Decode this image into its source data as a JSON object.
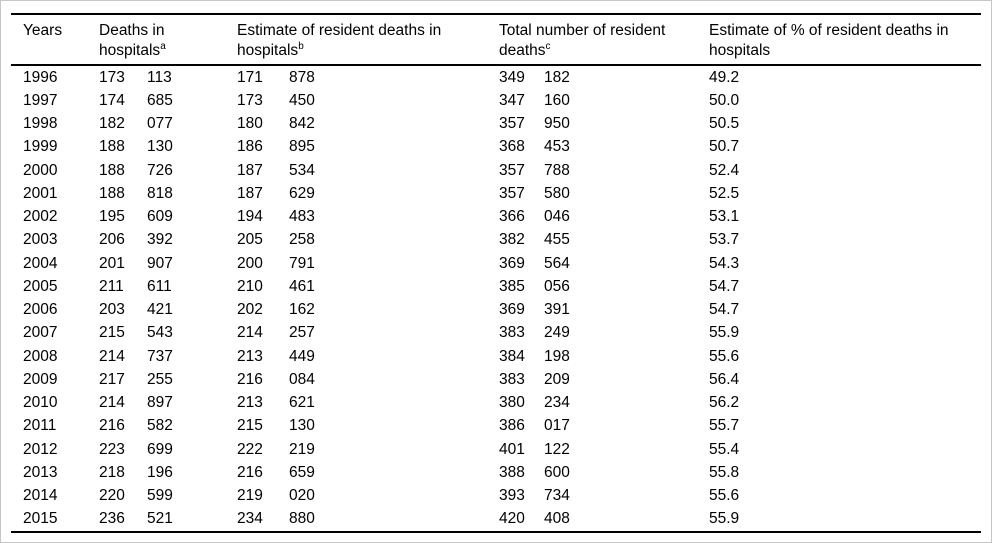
{
  "chart_data": {
    "type": "table",
    "columns": [
      "Years",
      "Deaths in hospitals",
      "Estimate of resident deaths in hospitals",
      "Total number of resident deaths",
      "Estimate of % of resident deaths in hospitals"
    ],
    "footnote_markers": [
      "a",
      "b",
      "c"
    ],
    "rows": [
      [
        1996,
        173113,
        171878,
        349182,
        49.2
      ],
      [
        1997,
        174685,
        173450,
        347160,
        50.0
      ],
      [
        1998,
        182077,
        180842,
        357950,
        50.5
      ],
      [
        1999,
        188130,
        186895,
        368453,
        50.7
      ],
      [
        2000,
        188726,
        187534,
        357788,
        52.4
      ],
      [
        2001,
        188818,
        187629,
        357580,
        52.5
      ],
      [
        2002,
        195609,
        194483,
        366046,
        53.1
      ],
      [
        2003,
        206392,
        205258,
        382455,
        53.7
      ],
      [
        2004,
        201907,
        200791,
        369564,
        54.3
      ],
      [
        2005,
        211611,
        210461,
        385056,
        54.7
      ],
      [
        2006,
        203421,
        202162,
        369391,
        54.7
      ],
      [
        2007,
        215543,
        214257,
        383249,
        55.9
      ],
      [
        2008,
        214737,
        213449,
        384198,
        55.6
      ],
      [
        2009,
        217255,
        216084,
        383209,
        56.4
      ],
      [
        2010,
        214897,
        213621,
        380234,
        56.2
      ],
      [
        2011,
        216582,
        215130,
        386017,
        55.7
      ],
      [
        2012,
        223699,
        222219,
        401122,
        55.4
      ],
      [
        2013,
        218196,
        216659,
        388600,
        55.8
      ],
      [
        2014,
        220599,
        219020,
        393734,
        55.6
      ],
      [
        2015,
        236521,
        234880,
        420408,
        55.9
      ]
    ]
  },
  "table": {
    "headers": {
      "years": "Years",
      "deaths_hospitals": {
        "text": "Deaths in hospitals",
        "sup": "a"
      },
      "estimate_resident": {
        "text": "Estimate of resident deaths in hospitals",
        "sup": "b"
      },
      "total_resident": {
        "text": "Total number of resident deaths",
        "sup": "c"
      },
      "pct_resident": {
        "text": "Estimate of % of resident deaths in hospitals"
      }
    },
    "rows": [
      {
        "year": "1996",
        "hosp": [
          "173",
          "113"
        ],
        "est": [
          "171",
          "878"
        ],
        "total": [
          "349",
          "182"
        ],
        "pct": "49.2"
      },
      {
        "year": "1997",
        "hosp": [
          "174",
          "685"
        ],
        "est": [
          "173",
          "450"
        ],
        "total": [
          "347",
          "160"
        ],
        "pct": "50.0"
      },
      {
        "year": "1998",
        "hosp": [
          "182",
          "077"
        ],
        "est": [
          "180",
          "842"
        ],
        "total": [
          "357",
          "950"
        ],
        "pct": "50.5"
      },
      {
        "year": "1999",
        "hosp": [
          "188",
          "130"
        ],
        "est": [
          "186",
          "895"
        ],
        "total": [
          "368",
          "453"
        ],
        "pct": "50.7"
      },
      {
        "year": "2000",
        "hosp": [
          "188",
          "726"
        ],
        "est": [
          "187",
          "534"
        ],
        "total": [
          "357",
          "788"
        ],
        "pct": "52.4"
      },
      {
        "year": "2001",
        "hosp": [
          "188",
          "818"
        ],
        "est": [
          "187",
          "629"
        ],
        "total": [
          "357",
          "580"
        ],
        "pct": "52.5"
      },
      {
        "year": "2002",
        "hosp": [
          "195",
          "609"
        ],
        "est": [
          "194",
          "483"
        ],
        "total": [
          "366",
          "046"
        ],
        "pct": "53.1"
      },
      {
        "year": "2003",
        "hosp": [
          "206",
          "392"
        ],
        "est": [
          "205",
          "258"
        ],
        "total": [
          "382",
          "455"
        ],
        "pct": "53.7"
      },
      {
        "year": "2004",
        "hosp": [
          "201",
          "907"
        ],
        "est": [
          "200",
          "791"
        ],
        "total": [
          "369",
          "564"
        ],
        "pct": "54.3"
      },
      {
        "year": "2005",
        "hosp": [
          "211",
          "611"
        ],
        "est": [
          "210",
          "461"
        ],
        "total": [
          "385",
          "056"
        ],
        "pct": "54.7"
      },
      {
        "year": "2006",
        "hosp": [
          "203",
          "421"
        ],
        "est": [
          "202",
          "162"
        ],
        "total": [
          "369",
          "391"
        ],
        "pct": "54.7"
      },
      {
        "year": "2007",
        "hosp": [
          "215",
          "543"
        ],
        "est": [
          "214",
          "257"
        ],
        "total": [
          "383",
          "249"
        ],
        "pct": "55.9"
      },
      {
        "year": "2008",
        "hosp": [
          "214",
          "737"
        ],
        "est": [
          "213",
          "449"
        ],
        "total": [
          "384",
          "198"
        ],
        "pct": "55.6"
      },
      {
        "year": "2009",
        "hosp": [
          "217",
          "255"
        ],
        "est": [
          "216",
          "084"
        ],
        "total": [
          "383",
          "209"
        ],
        "pct": "56.4"
      },
      {
        "year": "2010",
        "hosp": [
          "214",
          "897"
        ],
        "est": [
          "213",
          "621"
        ],
        "total": [
          "380",
          "234"
        ],
        "pct": "56.2"
      },
      {
        "year": "2011",
        "hosp": [
          "216",
          "582"
        ],
        "est": [
          "215",
          "130"
        ],
        "total": [
          "386",
          "017"
        ],
        "pct": "55.7"
      },
      {
        "year": "2012",
        "hosp": [
          "223",
          "699"
        ],
        "est": [
          "222",
          "219"
        ],
        "total": [
          "401",
          "122"
        ],
        "pct": "55.4"
      },
      {
        "year": "2013",
        "hosp": [
          "218",
          "196"
        ],
        "est": [
          "216",
          "659"
        ],
        "total": [
          "388",
          "600"
        ],
        "pct": "55.8"
      },
      {
        "year": "2014",
        "hosp": [
          "220",
          "599"
        ],
        "est": [
          "219",
          "020"
        ],
        "total": [
          "393",
          "734"
        ],
        "pct": "55.6"
      },
      {
        "year": "2015",
        "hosp": [
          "236",
          "521"
        ],
        "est": [
          "234",
          "880"
        ],
        "total": [
          "420",
          "408"
        ],
        "pct": "55.9"
      }
    ]
  },
  "colors": {
    "rule": "#000000",
    "text": "#000000",
    "background": "#ffffff",
    "frame": "#c6c6c6"
  }
}
